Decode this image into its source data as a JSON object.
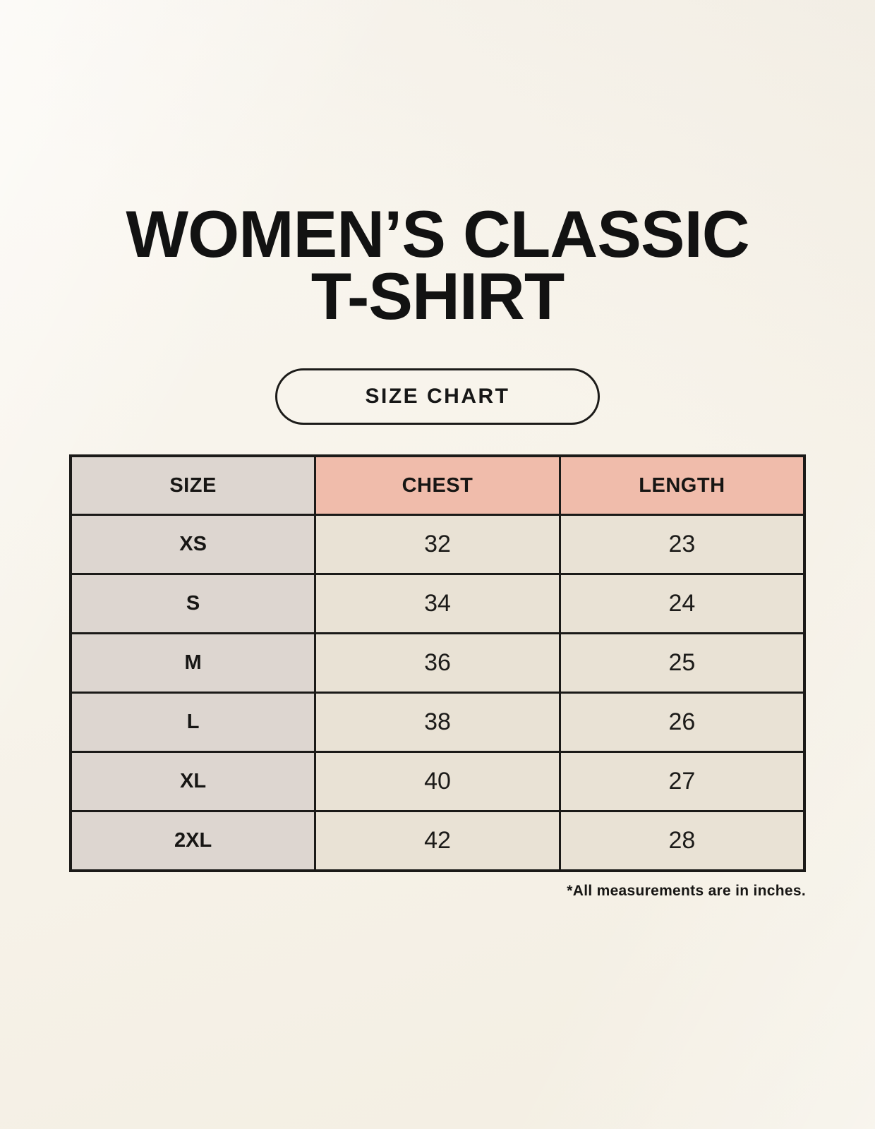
{
  "header": {
    "title_line1": "WOMEN’S CLASSIC",
    "title_line2": "T-SHIRT",
    "size_chart_button_label": "SIZE CHART"
  },
  "table": {
    "headers": {
      "size": "SIZE",
      "chest": "CHEST",
      "length": "LENGTH"
    },
    "rows": [
      {
        "size": "XS",
        "chest": "32",
        "length": "23"
      },
      {
        "size": "S",
        "chest": "34",
        "length": "24"
      },
      {
        "size": "M",
        "chest": "36",
        "length": "25"
      },
      {
        "size": "L",
        "chest": "38",
        "length": "26"
      },
      {
        "size": "XL",
        "chest": "40",
        "length": "27"
      },
      {
        "size": "2XL",
        "chest": "42",
        "length": "28"
      }
    ],
    "footnote": "*All measurements are in inches."
  },
  "chart_data": {
    "type": "table",
    "title": "WOMEN’S CLASSIC T-SHIRT — SIZE CHART",
    "columns": [
      "SIZE",
      "CHEST",
      "LENGTH"
    ],
    "rows": [
      [
        "XS",
        32,
        23
      ],
      [
        "S",
        34,
        24
      ],
      [
        "M",
        36,
        25
      ],
      [
        "L",
        38,
        26
      ],
      [
        "XL",
        40,
        27
      ],
      [
        "2XL",
        42,
        28
      ]
    ],
    "units": "inches"
  },
  "colors": {
    "background": "#f7f3ea",
    "size_column_bg": "#ddd6d0",
    "measure_header_bg": "#f0bcab",
    "value_cell_bg": "#e9e2d5",
    "border": "#1b1a18",
    "text": "#161513"
  }
}
